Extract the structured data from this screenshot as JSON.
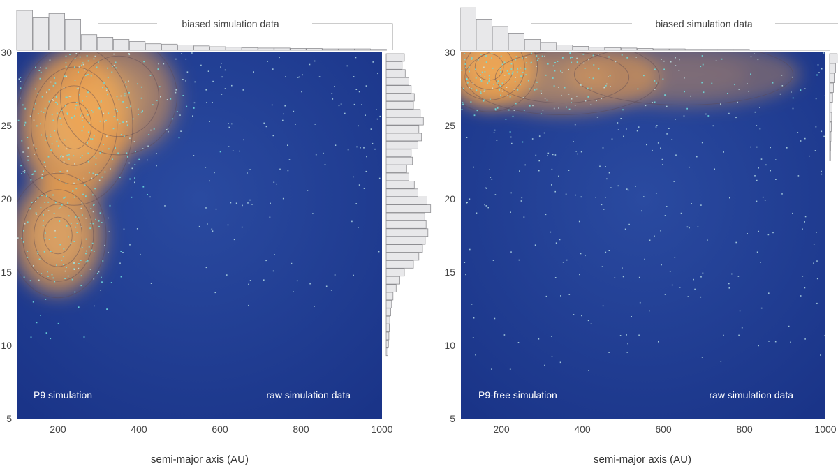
{
  "chart_data": [
    {
      "type": "heatmap",
      "panel": "left",
      "xlabel": "semi-major axis (AU)",
      "ylabel": "",
      "xlim": [
        100,
        1000
      ],
      "ylim": [
        5,
        30
      ],
      "x_ticks": [
        "200",
        "400",
        "600",
        "800",
        "1000"
      ],
      "y_ticks": [
        "5",
        "10",
        "15",
        "20",
        "25",
        "30"
      ],
      "annotation_left": "P9 simulation",
      "annotation_right": "raw simulation data",
      "marginal_label": "biased simulation data",
      "density_peaks": [
        {
          "x": 240,
          "y": 25,
          "weight": 1.0,
          "sx": 85,
          "sy": 3.2
        },
        {
          "x": 200,
          "y": 17.5,
          "weight": 0.85,
          "sx": 70,
          "sy": 2.5
        },
        {
          "x": 350,
          "y": 27,
          "weight": 0.55,
          "sx": 90,
          "sy": 2.5
        }
      ],
      "top_histogram": [
        0.92,
        0.75,
        0.85,
        0.72,
        0.36,
        0.3,
        0.25,
        0.2,
        0.15,
        0.14,
        0.12,
        0.1,
        0.08,
        0.07,
        0.06,
        0.05,
        0.05,
        0.04,
        0.04,
        0.03,
        0.03,
        0.03,
        0.02
      ],
      "right_histogram": [
        0.4,
        0.35,
        0.42,
        0.5,
        0.55,
        0.62,
        0.6,
        0.75,
        0.82,
        0.72,
        0.78,
        0.7,
        0.55,
        0.58,
        0.45,
        0.5,
        0.62,
        0.7,
        0.9,
        0.98,
        0.85,
        0.88,
        0.92,
        0.86,
        0.8,
        0.72,
        0.6,
        0.4,
        0.3,
        0.22,
        0.15,
        0.12,
        0.1,
        0.08,
        0.07,
        0.06,
        0.05,
        0.04
      ],
      "colors": {
        "background": "#1d3a8c",
        "density": "#f2a24a",
        "points": "#6fe0e0",
        "histogram": "#e8e8ea"
      }
    },
    {
      "type": "heatmap",
      "panel": "right",
      "xlabel": "semi-major axis (AU)",
      "ylabel": "",
      "xlim": [
        100,
        1000
      ],
      "ylim": [
        5,
        30
      ],
      "x_ticks": [
        "200",
        "400",
        "600",
        "800",
        "1000"
      ],
      "y_ticks": [
        "5",
        "10",
        "15",
        "20",
        "25",
        "30"
      ],
      "annotation_left": "P9-free simulation",
      "annotation_right": "raw simulation data",
      "marginal_label": "biased simulation data",
      "density_peaks": [
        {
          "x": 170,
          "y": 29,
          "weight": 1.0,
          "sx": 70,
          "sy": 1.8
        },
        {
          "x": 350,
          "y": 28.3,
          "weight": 0.45,
          "sx": 150,
          "sy": 1.6
        },
        {
          "x": 650,
          "y": 28.5,
          "weight": 0.2,
          "sx": 180,
          "sy": 1.4
        }
      ],
      "top_histogram": [
        0.98,
        0.72,
        0.55,
        0.38,
        0.25,
        0.18,
        0.12,
        0.09,
        0.07,
        0.06,
        0.05,
        0.04,
        0.03,
        0.03,
        0.02,
        0.02,
        0.02,
        0.02,
        0.01,
        0.01,
        0.01,
        0.01,
        0.01
      ],
      "right_histogram": [
        0.9,
        0.7,
        0.55,
        0.45,
        0.35,
        0.3,
        0.25,
        0.2,
        0.16,
        0.13,
        0.1
      ],
      "colors": {
        "background": "#1d3a8c",
        "density": "#f2a24a",
        "points": "#6fe0e0",
        "histogram": "#e8e8ea"
      }
    }
  ]
}
